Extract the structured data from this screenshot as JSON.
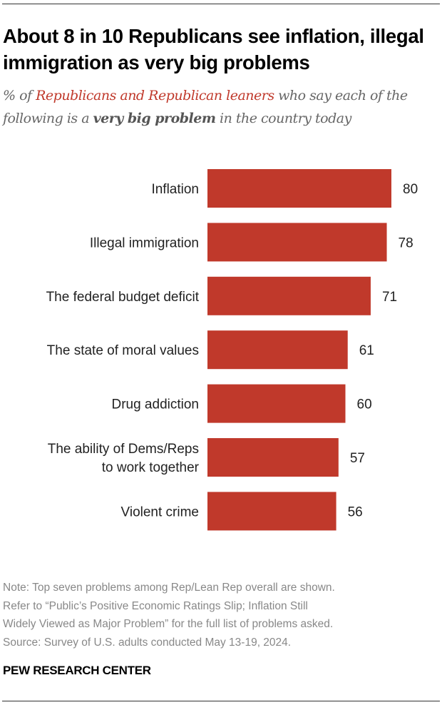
{
  "title": "About 8 in 10 Republicans see inflation, illegal immigration as very big problems",
  "subtitle": {
    "prefix": "% of ",
    "highlight": "Republicans and Republican leaners",
    "middle": " who say each of the following is a ",
    "bold": "very big problem",
    "suffix": " in the country today"
  },
  "chart_data": {
    "type": "bar",
    "orientation": "horizontal",
    "categories": [
      [
        "Inflation"
      ],
      [
        "Illegal immigration"
      ],
      [
        "The federal budget deficit"
      ],
      [
        "The state of moral values"
      ],
      [
        "Drug addiction"
      ],
      [
        "The ability of Dems/Reps",
        "to work together"
      ],
      [
        "Violent crime"
      ]
    ],
    "values": [
      80,
      78,
      71,
      61,
      60,
      57,
      56
    ],
    "xlim": [
      0,
      100
    ],
    "grid": false,
    "bar_color": "#c0392b"
  },
  "notes": [
    "Note: Top seven problems among Rep/Lean Rep overall are shown.",
    "Refer to “Public’s Positive Economic Ratings Slip; Inflation Still",
    "Widely Viewed as Major Problem” for the full list of problems asked.",
    "Source: Survey of U.S. adults conducted May 13-19, 2024."
  ],
  "brand": "PEW RESEARCH CENTER"
}
